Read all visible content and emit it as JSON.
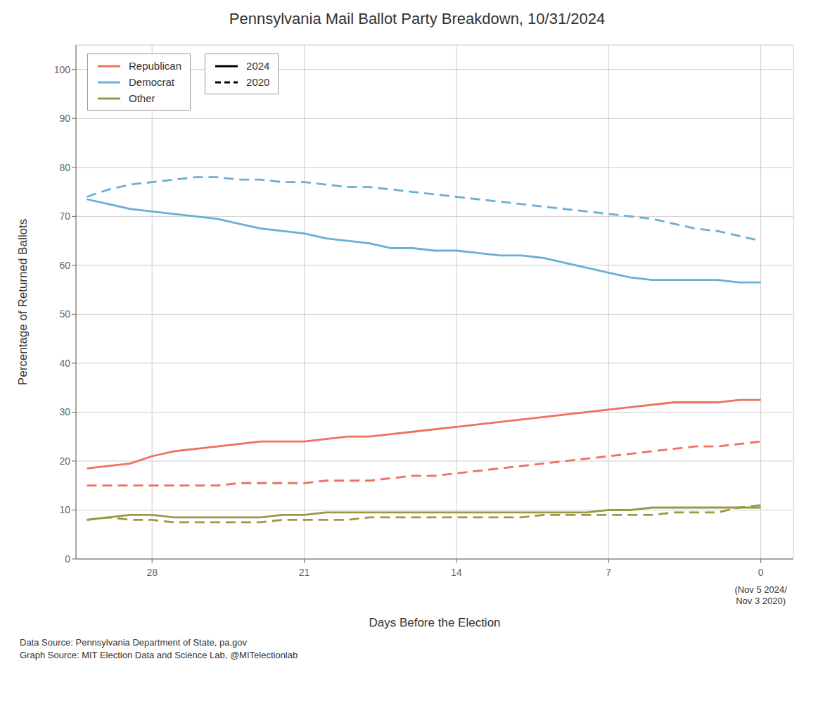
{
  "chart_data": {
    "type": "line",
    "title": "Pennsylvania Mail Ballot Party Breakdown, 10/31/2024",
    "x_label": "Days Before the Election",
    "y_label": "Percentage of Returned Ballots",
    "footnotes": [
      "Data Source: Pennsylvania Department of State, pa.gov",
      "Graph Source: MIT Election Data and Science Lab, @MITelectionlab"
    ],
    "annotations": [
      {
        "text": "(Nov 5 2024/\nNov 3 2020)",
        "x": 0
      }
    ],
    "x": [
      31,
      30,
      29,
      28,
      27,
      26,
      25,
      24,
      23,
      22,
      21,
      20,
      19,
      18,
      17,
      16,
      15,
      14,
      13,
      12,
      11,
      10,
      9,
      8,
      7,
      6,
      5,
      4,
      3,
      2,
      1,
      0
    ],
    "series": [
      {
        "name": "Democrat",
        "color": "#6baed6",
        "line_style": "solid",
        "values": [
          73.5,
          72.5,
          71.5,
          71.0,
          70.5,
          70.0,
          69.5,
          68.5,
          67.5,
          67.0,
          66.5,
          65.5,
          65.0,
          64.5,
          63.5,
          63.5,
          63.0,
          63.0,
          62.5,
          62.0,
          62.0,
          61.5,
          60.5,
          59.5,
          58.5,
          57.5,
          57.0,
          57.0,
          57.0,
          57.0,
          56.5,
          56.5
        ]
      },
      {
        "name": "Republican",
        "color": "#f07060",
        "line_style": "solid",
        "values": [
          18.5,
          19.0,
          19.5,
          21.0,
          22.0,
          22.5,
          23.0,
          23.5,
          24.0,
          24.0,
          24.0,
          24.5,
          25.0,
          25.0,
          25.5,
          26.0,
          26.5,
          27.0,
          27.5,
          28.0,
          28.5,
          29.0,
          29.5,
          30.0,
          30.5,
          31.0,
          31.5,
          32.0,
          32.0,
          32.0,
          32.5,
          32.5
        ]
      },
      {
        "name": "Other",
        "color": "#999944",
        "line_style": "solid",
        "values": [
          8.0,
          8.5,
          9.0,
          9.0,
          8.5,
          8.5,
          8.5,
          8.5,
          8.5,
          9.0,
          9.0,
          9.5,
          9.5,
          9.5,
          9.5,
          9.5,
          9.5,
          9.5,
          9.5,
          9.5,
          9.5,
          9.5,
          9.5,
          9.5,
          10.0,
          10.0,
          10.5,
          10.5,
          10.5,
          10.5,
          10.5,
          10.5
        ]
      },
      {
        "name": "Democrat",
        "color": "#6baed6",
        "line_style": "dashed",
        "values": [
          74.0,
          75.5,
          76.5,
          77.0,
          77.5,
          78.0,
          78.0,
          77.5,
          77.5,
          77.0,
          77.0,
          76.5,
          76.0,
          76.0,
          75.5,
          75.0,
          74.5,
          74.0,
          73.5,
          73.0,
          72.5,
          72.0,
          71.5,
          71.0,
          70.5,
          70.0,
          69.5,
          68.5,
          67.5,
          67.0,
          66.0,
          65.0
        ]
      },
      {
        "name": "Republican",
        "color": "#f07060",
        "line_style": "dashed",
        "values": [
          15.0,
          15.0,
          15.0,
          15.0,
          15.0,
          15.0,
          15.0,
          15.5,
          15.5,
          15.5,
          15.5,
          16.0,
          16.0,
          16.0,
          16.5,
          17.0,
          17.0,
          17.5,
          18.0,
          18.5,
          19.0,
          19.5,
          20.0,
          20.5,
          21.0,
          21.5,
          22.0,
          22.5,
          23.0,
          23.0,
          23.5,
          24.0
        ]
      },
      {
        "name": "Other",
        "color": "#999944",
        "line_style": "dashed",
        "values": [
          8.0,
          8.5,
          8.0,
          8.0,
          7.5,
          7.5,
          7.5,
          7.5,
          7.5,
          8.0,
          8.0,
          8.0,
          8.0,
          8.5,
          8.5,
          8.5,
          8.5,
          8.5,
          8.5,
          8.5,
          8.5,
          9.0,
          9.0,
          9.0,
          9.0,
          9.0,
          9.0,
          9.5,
          9.5,
          9.5,
          10.5,
          11.0
        ]
      }
    ],
    "legend_items": [
      {
        "name": "Republican",
        "color": "#f07060"
      },
      {
        "name": "Democrat",
        "color": "#6baed6"
      },
      {
        "name": "Other",
        "color": "#999944"
      },
      {
        "name": "2024",
        "color": "#000000",
        "line_style": "solid"
      },
      {
        "name": "2020",
        "color": "#000000",
        "line_style": "dashed"
      }
    ],
    "xlim": [
      31.5,
      -1.5
    ],
    "xticks": [
      28,
      21,
      14,
      7,
      0
    ],
    "ylim": [
      0,
      105
    ],
    "yticks": [
      0,
      10,
      20,
      30,
      40,
      50,
      60,
      70,
      80,
      90,
      100
    ],
    "grid": true,
    "legend": "upper left"
  }
}
